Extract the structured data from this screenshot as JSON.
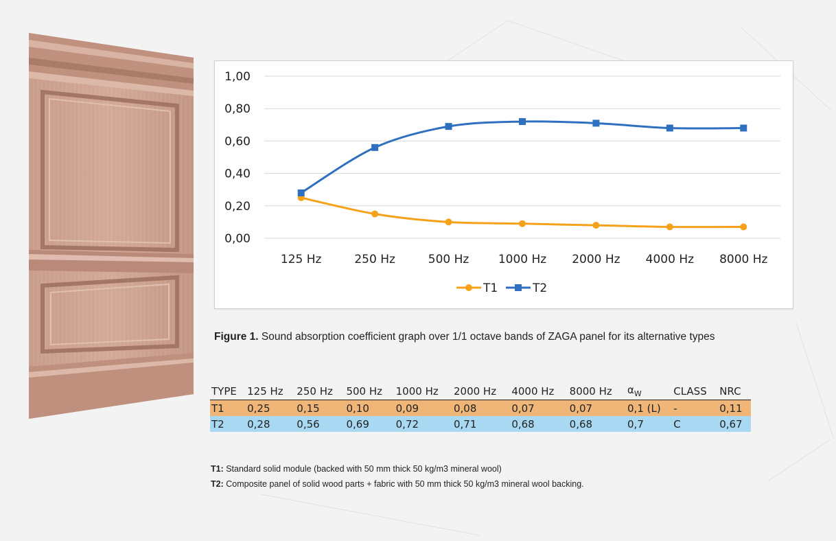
{
  "chart_data": {
    "type": "line",
    "categories": [
      "125 Hz",
      "250 Hz",
      "500 Hz",
      "1000 Hz",
      "2000 Hz",
      "4000 Hz",
      "8000 Hz"
    ],
    "series": [
      {
        "name": "T1",
        "values": [
          0.25,
          0.15,
          0.1,
          0.09,
          0.08,
          0.07,
          0.07
        ],
        "color": "#f5a21a",
        "marker": "circle"
      },
      {
        "name": "T2",
        "values": [
          0.28,
          0.56,
          0.69,
          0.72,
          0.71,
          0.68,
          0.68
        ],
        "color": "#2e6fc0",
        "marker": "square"
      }
    ],
    "yticks": [
      "0,00",
      "0,20",
      "0,40",
      "0,60",
      "0,80",
      "1,00"
    ],
    "ylim": [
      0,
      1
    ],
    "grid": true,
    "legend": "bottom-center",
    "title": "",
    "xlabel": "",
    "ylabel": ""
  },
  "caption": {
    "bold": "Figure 1.",
    "text": " Sound absorption coefficient graph over 1/1 octave bands of ZAGA panel for its alternative types"
  },
  "table": {
    "headers": [
      "TYPE",
      "125 Hz",
      "250 Hz",
      "500 Hz",
      "1000 Hz",
      "2000 Hz",
      "4000 Hz",
      "8000 Hz",
      "α",
      "CLASS",
      "NRC"
    ],
    "alpha_sub": "W",
    "rows": [
      [
        "T1",
        "0,25",
        "0,15",
        "0,10",
        "0,09",
        "0,08",
        "0,07",
        "0,07",
        "0,1 (L)",
        "-",
        "0,11"
      ],
      [
        "T2",
        "0,28",
        "0,56",
        "0,69",
        "0,72",
        "0,71",
        "0,68",
        "0,68",
        "0,7",
        "C",
        "0,67"
      ]
    ]
  },
  "notes": [
    {
      "label": "T1:",
      "text": " Standard solid module (backed with 50 mm thick 50 kg/m3 mineral wool)"
    },
    {
      "label": "T2:",
      "text": " Composite panel of solid wood parts + fabric with 50 mm thick 50 kg/m3 mineral wool backing."
    }
  ],
  "image": {
    "subject": "wood-panel"
  }
}
